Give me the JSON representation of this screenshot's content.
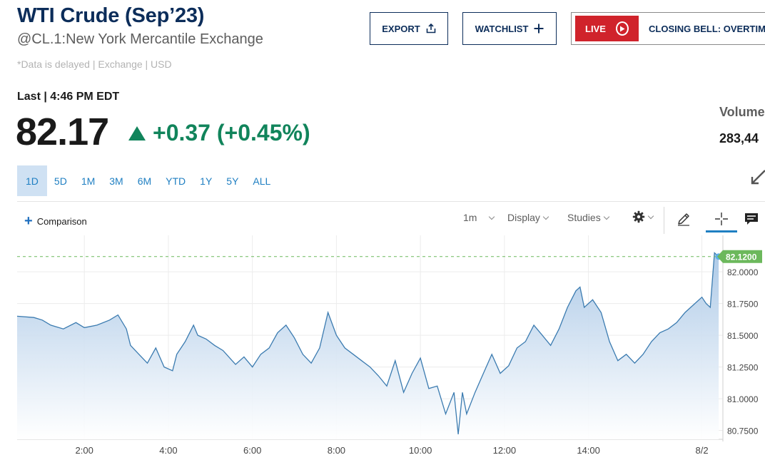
{
  "header": {
    "title": "WTI Crude (Sep’23)",
    "subtitle": "@CL.1:New York Mercantile Exchange",
    "delayed_note": "*Data is delayed | Exchange | USD"
  },
  "actions": {
    "export_label": "EXPORT",
    "watchlist_label": "WATCHLIST",
    "live_label": "LIVE",
    "live_show": "CLOSING BELL: OVERTIME"
  },
  "quote": {
    "last_label": "Last | 4:46 PM EDT",
    "price": "82.17",
    "change": "+0.37 (+0.45%)",
    "change_direction": "up",
    "change_color": "#11845b",
    "volume_label": "Volume",
    "volume_value": "283,44"
  },
  "ranges": {
    "items": [
      "1D",
      "5D",
      "1M",
      "3M",
      "6M",
      "YTD",
      "1Y",
      "5Y",
      "ALL"
    ],
    "selected": "1D"
  },
  "toolbar": {
    "comparison_label": "Comparison",
    "interval_label": "1m",
    "display_label": "Display",
    "studies_label": "Studies",
    "icons": [
      "settings-icon",
      "pencil-icon",
      "crosshair-icon",
      "comment-icon"
    ]
  },
  "chart_data": {
    "type": "area",
    "title": "",
    "xlabel": "",
    "ylabel": "",
    "x_ticks": [
      "2:00",
      "4:00",
      "6:00",
      "8:00",
      "10:00",
      "12:00",
      "14:00",
      "8/2"
    ],
    "y_ticks": [
      "82.0000",
      "81.7500",
      "81.5000",
      "81.2500",
      "81.0000",
      "80.7500"
    ],
    "ylim": [
      80.68,
      82.22
    ],
    "xlim": [
      0.4,
      17.2
    ],
    "last_price_label": "82.1200",
    "last_price": 82.12,
    "grid": true,
    "line_color": "#3b7bb0",
    "fill_color": "#cfe0f2",
    "label_color": "#6cb85c",
    "series": [
      {
        "x": [
          0.4,
          0.8,
          1.0,
          1.2,
          1.5,
          1.8,
          2.0,
          2.3,
          2.6,
          2.8,
          3.0,
          3.1,
          3.3,
          3.5,
          3.7,
          3.9,
          4.1,
          4.2,
          4.4,
          4.6,
          4.7,
          4.9,
          5.1,
          5.3,
          5.6,
          5.8,
          6.0,
          6.2,
          6.4,
          6.6,
          6.8,
          7.0,
          7.2,
          7.4,
          7.6,
          7.8,
          8.0,
          8.2,
          8.4,
          8.6,
          8.8,
          9.0,
          9.2,
          9.4,
          9.6,
          9.8,
          10.0,
          10.2,
          10.4,
          10.6,
          10.8,
          10.9,
          11.0,
          11.1,
          11.3,
          11.5,
          11.7,
          11.9,
          12.1,
          12.3,
          12.5,
          12.7,
          12.9,
          13.1,
          13.3,
          13.5,
          13.7,
          13.8,
          13.9,
          14.1,
          14.3,
          14.5,
          14.7,
          14.9,
          15.1,
          15.3,
          15.5,
          15.7,
          15.9,
          16.1,
          16.3,
          16.5,
          16.7,
          16.8,
          16.9,
          17.0,
          17.1
        ],
        "y": [
          81.65,
          81.64,
          81.62,
          81.58,
          81.55,
          81.6,
          81.56,
          81.58,
          81.62,
          81.66,
          81.55,
          81.42,
          81.35,
          81.28,
          81.4,
          81.25,
          81.22,
          81.35,
          81.45,
          81.58,
          81.5,
          81.47,
          81.42,
          81.38,
          81.27,
          81.33,
          81.25,
          81.35,
          81.4,
          81.52,
          81.58,
          81.48,
          81.35,
          81.28,
          81.4,
          81.68,
          81.5,
          81.4,
          81.35,
          81.3,
          81.25,
          81.18,
          81.1,
          81.3,
          81.05,
          81.2,
          81.32,
          81.08,
          81.1,
          80.88,
          81.05,
          80.72,
          81.05,
          80.88,
          81.05,
          81.2,
          81.35,
          81.2,
          81.26,
          81.4,
          81.45,
          81.58,
          81.5,
          81.42,
          81.55,
          81.72,
          81.85,
          81.88,
          81.72,
          81.78,
          81.68,
          81.45,
          81.3,
          81.35,
          81.28,
          81.35,
          81.45,
          81.52,
          81.55,
          81.6,
          81.68,
          81.74,
          81.8,
          81.75,
          81.72,
          82.15,
          82.12
        ]
      }
    ]
  }
}
